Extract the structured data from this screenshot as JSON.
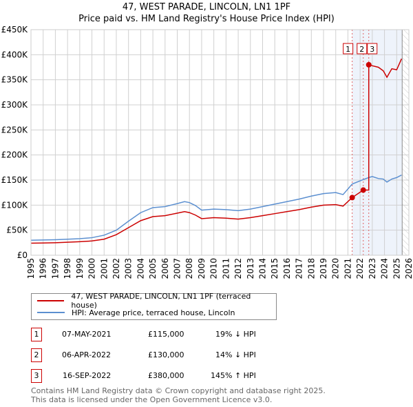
{
  "header": {
    "title": "47, WEST PARADE, LINCOLN, LN1 1PF",
    "subtitle": "Price paid vs. HM Land Registry's House Price Index (HPI)"
  },
  "chart_data": {
    "type": "line",
    "title": "47, WEST PARADE, LINCOLN, LN1 1PF",
    "xlabel": "",
    "ylabel": "",
    "xlim": [
      1995,
      2026
    ],
    "ylim": [
      0,
      450000
    ],
    "xticks": [
      "1995",
      "1996",
      "1997",
      "1998",
      "1999",
      "2000",
      "2001",
      "2002",
      "2003",
      "2004",
      "2005",
      "2006",
      "2007",
      "2008",
      "2009",
      "2010",
      "2011",
      "2012",
      "2013",
      "2014",
      "2015",
      "2016",
      "2017",
      "2018",
      "2019",
      "2020",
      "2021",
      "2022",
      "2023",
      "2024",
      "2025",
      "2026"
    ],
    "yticks": [
      {
        "v": 0,
        "label": "£0"
      },
      {
        "v": 50000,
        "label": "£50K"
      },
      {
        "v": 100000,
        "label": "£100K"
      },
      {
        "v": 150000,
        "label": "£150K"
      },
      {
        "v": 200000,
        "label": "£200K"
      },
      {
        "v": 250000,
        "label": "£250K"
      },
      {
        "v": 300000,
        "label": "£300K"
      },
      {
        "v": 350000,
        "label": "£350K"
      },
      {
        "v": 400000,
        "label": "£400K"
      },
      {
        "v": 450000,
        "label": "£450K"
      }
    ],
    "grid": true,
    "data_end": 2025.45,
    "series": [
      {
        "name": "47, WEST PARADE, LINCOLN, LN1 1PF (terraced house)",
        "color": "#cc0000",
        "x": [
          1995,
          1996,
          1997,
          1998,
          1999,
          2000,
          2001,
          2002,
          2003,
          2004,
          2005,
          2006,
          2007,
          2007.6,
          2008,
          2008.5,
          2009,
          2010,
          2011,
          2012,
          2013,
          2014,
          2015,
          2016,
          2017,
          2018,
          2019,
          2020,
          2020.6,
          2021.35,
          2022.26,
          2022.71,
          2022.71,
          2023,
          2023.5,
          2023.9,
          2024.2,
          2024.6,
          2025,
          2025.4
        ],
        "y": [
          24000,
          24500,
          25000,
          26000,
          27000,
          28500,
          32000,
          41000,
          55000,
          69000,
          77000,
          79000,
          84000,
          87000,
          85000,
          80000,
          73000,
          75000,
          74000,
          72000,
          75000,
          79000,
          83000,
          87000,
          91000,
          96000,
          100000,
          101000,
          98000,
          115000,
          130000,
          130000,
          380000,
          378000,
          375000,
          368000,
          355000,
          372000,
          370000,
          392000
        ]
      },
      {
        "name": "HPI: Average price, terraced house, Lincoln",
        "color": "#5b8fd0",
        "x": [
          1995,
          1996,
          1997,
          1998,
          1999,
          2000,
          2001,
          2002,
          2003,
          2004,
          2005,
          2006,
          2007,
          2007.6,
          2008,
          2008.5,
          2009,
          2010,
          2011,
          2012,
          2013,
          2014,
          2015,
          2016,
          2017,
          2018,
          2019,
          2020,
          2020.6,
          2021.35,
          2022.26,
          2022.71,
          2023,
          2023.5,
          2023.9,
          2024.2,
          2024.6,
          2025,
          2025.4
        ],
        "y": [
          30000,
          30500,
          31000,
          32000,
          33000,
          35000,
          40000,
          50000,
          68000,
          85000,
          95000,
          97000,
          103000,
          107000,
          105000,
          99000,
          90000,
          92000,
          91000,
          89000,
          92000,
          97000,
          102000,
          107000,
          112000,
          118000,
          123000,
          125000,
          121000,
          142000,
          151000,
          155000,
          157000,
          153000,
          152000,
          146000,
          152000,
          155000,
          160000
        ]
      }
    ],
    "sales": [
      {
        "label": "1",
        "x": 2021.35,
        "y": 115000,
        "date": "07-MAY-2021",
        "price": "£115,000",
        "hpi": "19% ↓ HPI"
      },
      {
        "label": "2",
        "x": 2022.26,
        "y": 130000,
        "date": "06-APR-2022",
        "price": "£130,000",
        "hpi": "14% ↓ HPI"
      },
      {
        "label": "3",
        "x": 2022.71,
        "y": 380000,
        "date": "16-SEP-2022",
        "price": "£380,000",
        "hpi": "145% ↑ HPI"
      }
    ]
  },
  "legend": {
    "items": [
      "47, WEST PARADE, LINCOLN, LN1 1PF (terraced house)",
      "HPI: Average price, terraced house, Lincoln"
    ]
  },
  "footer": {
    "line1": "Contains HM Land Registry data © Crown copyright and database right 2025.",
    "line2": "This data is licensed under the Open Government Licence v3.0."
  }
}
